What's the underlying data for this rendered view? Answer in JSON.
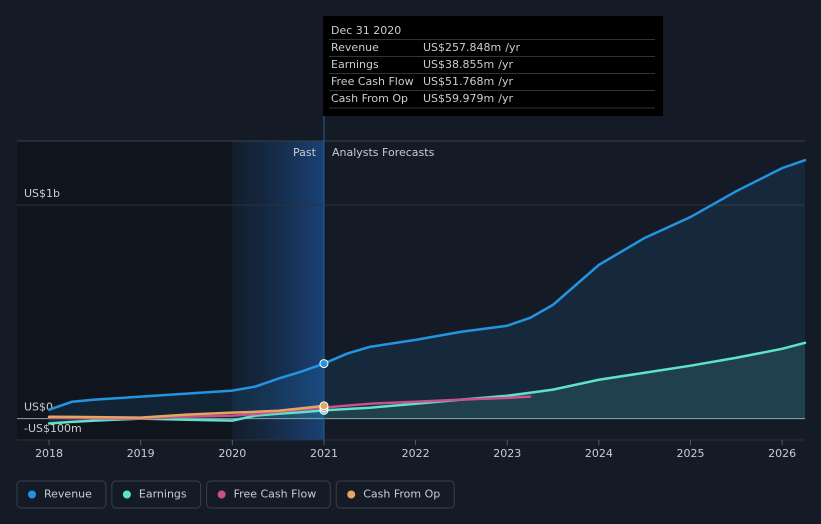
{
  "chart_data": {
    "type": "line",
    "x": [
      2018,
      2018.25,
      2018.5,
      2019,
      2019.5,
      2020,
      2020.25,
      2020.5,
      2020.75,
      2021,
      2021.25,
      2021.5,
      2022,
      2022.5,
      2023,
      2023.25,
      2023.5,
      2024,
      2024.5,
      2025,
      2025.5,
      2026,
      2026.25
    ],
    "series": [
      {
        "name": "Revenue",
        "color": "#2394df",
        "values": [
          42,
          79,
          89,
          103,
          117,
          131,
          150,
          187,
          220,
          257.848,
          304,
          336,
          369,
          407,
          435,
          472,
          533,
          720,
          846,
          944,
          1065,
          1173,
          1210
        ]
      },
      {
        "name": "Earnings",
        "color": "#5fe3c7",
        "values": [
          -23,
          -15,
          -9,
          0,
          -5,
          -9,
          14,
          23,
          30,
          38.855,
          45,
          51,
          70,
          89,
          107,
          121,
          136,
          182,
          215,
          248,
          285,
          327,
          355
        ]
      },
      {
        "name": "Free Cash Flow",
        "color": "#c9508d",
        "values": [
          5,
          3,
          2,
          0,
          9,
          14,
          22,
          33,
          42,
          51.768,
          61,
          70,
          79,
          89,
          97,
          103,
          null,
          null,
          null,
          null,
          null,
          null,
          null
        ]
      },
      {
        "name": "Cash From Op",
        "color": "#e6a560",
        "values": [
          9,
          8,
          7,
          5,
          19,
          28,
          32,
          37,
          48,
          59.979,
          null,
          null,
          null,
          null,
          null,
          null,
          null,
          null,
          null,
          null,
          null,
          null,
          null
        ]
      }
    ],
    "xlim": [
      2017.65,
      2026.25
    ],
    "xticks": [
      2018,
      2019,
      2020,
      2021,
      2022,
      2023,
      2024,
      2025,
      2026
    ],
    "ylim": [
      -100,
      1300
    ],
    "yticks": [
      {
        "value": -100,
        "label": "-US$100m"
      },
      {
        "value": 0,
        "label": "US$0"
      },
      {
        "value": 1000,
        "label": "US$1b"
      }
    ],
    "grid": true,
    "forecast_start": 2021,
    "past_label": "Past",
    "forecast_label": "Analysts Forecasts",
    "tooltip": {
      "date": "Dec 31 2020",
      "rows": [
        {
          "label": "Revenue",
          "value": "US$257.848m",
          "unit": "/yr"
        },
        {
          "label": "Earnings",
          "value": "US$38.855m",
          "unit": "/yr"
        },
        {
          "label": "Free Cash Flow",
          "value": "US$51.768m",
          "unit": "/yr"
        },
        {
          "label": "Cash From Op",
          "value": "US$59.979m",
          "unit": "/yr"
        }
      ]
    }
  }
}
